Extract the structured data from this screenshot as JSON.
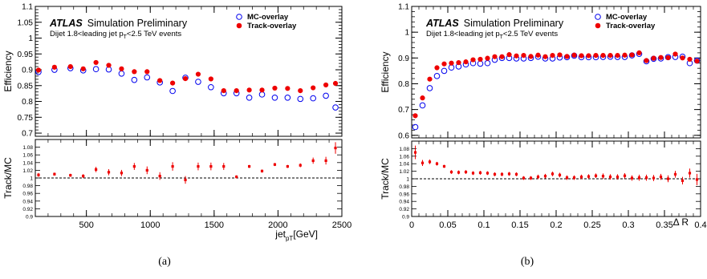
{
  "chart_data": [
    {
      "type": "scatter",
      "panel_label": "(a)",
      "atlas_label": "ATLAS",
      "atlas_sublabel": "Simulation Preliminary",
      "event_selection": {
        "prefix": "Dijet 1.8<leading jet p",
        "sub": "T",
        "suffix": "<2.5 TeV events"
      },
      "ylabel": "Efficiency",
      "ratio_ylabel": "Track/MC",
      "xlabel": {
        "main": "jet",
        "sub": "pT",
        "unit": "[GeV]"
      },
      "xlim": [
        100,
        2500
      ],
      "ylim": [
        0.69,
        1.1
      ],
      "ratio_ylim": [
        0.9,
        1.1
      ],
      "xticks": [
        500,
        1000,
        1500,
        2000,
        2500
      ],
      "yticks": [
        0.7,
        0.75,
        0.8,
        0.85,
        0.9,
        0.95,
        1,
        1.05,
        1.1
      ],
      "ratio_yticks": [
        0.9,
        0.92,
        0.94,
        0.96,
        0.98,
        1,
        1.02,
        1.04,
        1.06,
        1.08
      ],
      "x_minor_step": 100,
      "legend_position": "top-right",
      "series": [
        {
          "name": "MC-overlay",
          "marker": "open-circle",
          "color": "#0000ee",
          "x": [
            125,
            250,
            375,
            475,
            575,
            675,
            775,
            875,
            975,
            1075,
            1175,
            1275,
            1375,
            1475,
            1575,
            1675,
            1775,
            1875,
            1975,
            2075,
            2175,
            2275,
            2375,
            2450
          ],
          "y": [
            0.893,
            0.9,
            0.905,
            0.898,
            0.902,
            0.901,
            0.888,
            0.868,
            0.876,
            0.86,
            0.833,
            0.875,
            0.862,
            0.845,
            0.826,
            0.826,
            0.812,
            0.822,
            0.812,
            0.812,
            0.808,
            0.81,
            0.818,
            0.781
          ]
        },
        {
          "name": "Track-overlay",
          "marker": "filled-circle",
          "color": "#ee0000",
          "x": [
            125,
            250,
            375,
            475,
            575,
            675,
            775,
            875,
            975,
            1075,
            1175,
            1275,
            1375,
            1475,
            1575,
            1675,
            1775,
            1875,
            1975,
            2075,
            2175,
            2275,
            2375,
            2450
          ],
          "y": [
            0.899,
            0.908,
            0.91,
            0.903,
            0.923,
            0.914,
            0.903,
            0.894,
            0.894,
            0.866,
            0.858,
            0.872,
            0.886,
            0.871,
            0.834,
            0.834,
            0.836,
            0.836,
            0.842,
            0.841,
            0.834,
            0.843,
            0.852,
            0.857
          ]
        }
      ],
      "ratio": {
        "color": "#ee0000",
        "x": [
          125,
          250,
          375,
          475,
          575,
          675,
          775,
          875,
          975,
          1075,
          1175,
          1275,
          1375,
          1475,
          1575,
          1675,
          1775,
          1875,
          1975,
          2075,
          2175,
          2275,
          2375,
          2450
        ],
        "y": [
          1.008,
          1.01,
          1.007,
          1.005,
          1.022,
          1.015,
          1.013,
          1.03,
          1.02,
          1.005,
          1.03,
          0.995,
          1.03,
          1.03,
          1.03,
          1.003,
          1.03,
          1.018,
          1.035,
          1.03,
          1.033,
          1.045,
          1.045,
          1.078
        ],
        "err": [
          0.005,
          0.004,
          0.004,
          0.005,
          0.007,
          0.008,
          0.008,
          0.009,
          0.01,
          0.01,
          0.011,
          0.01,
          0.01,
          0.01,
          0.009,
          0.004,
          0.004,
          0.004,
          0.004,
          0.004,
          0.005,
          0.008,
          0.01,
          0.015
        ]
      }
    },
    {
      "type": "scatter",
      "panel_label": "(b)",
      "atlas_label": "ATLAS",
      "atlas_sublabel": "Simulation Preliminary",
      "event_selection": {
        "prefix": "Dijet 1.8<leading jet p",
        "sub": "T",
        "suffix": "<2.5 TeV events"
      },
      "ylabel": "Efficiency",
      "ratio_ylabel": "Track/MC",
      "xlabel": {
        "main": "Δ R",
        "sub": "",
        "unit": ""
      },
      "xlim": [
        0,
        0.4
      ],
      "ylim": [
        0.59,
        1.1
      ],
      "ratio_ylim": [
        0.9,
        1.1
      ],
      "xticks": [
        0,
        0.05,
        0.1,
        0.15,
        0.2,
        0.25,
        0.3,
        0.35,
        0.4
      ],
      "yticks": [
        0.6,
        0.7,
        0.8,
        0.9,
        1,
        1.1
      ],
      "ratio_yticks": [
        0.9,
        0.92,
        0.94,
        0.96,
        0.98,
        1,
        1.02,
        1.04,
        1.06,
        1.08
      ],
      "x_minor_step": 0.01,
      "legend_position": "top-right",
      "series": [
        {
          "name": "MC-overlay",
          "marker": "open-circle",
          "color": "#0000ee",
          "x": [
            0.005,
            0.015,
            0.025,
            0.035,
            0.045,
            0.055,
            0.065,
            0.075,
            0.085,
            0.095,
            0.105,
            0.115,
            0.125,
            0.135,
            0.145,
            0.155,
            0.165,
            0.175,
            0.185,
            0.195,
            0.205,
            0.215,
            0.225,
            0.235,
            0.245,
            0.255,
            0.265,
            0.275,
            0.285,
            0.295,
            0.305,
            0.315,
            0.325,
            0.335,
            0.345,
            0.355,
            0.365,
            0.375,
            0.385,
            0.395
          ],
          "y": [
            0.632,
            0.716,
            0.783,
            0.83,
            0.85,
            0.863,
            0.867,
            0.875,
            0.88,
            0.878,
            0.88,
            0.893,
            0.9,
            0.9,
            0.898,
            0.898,
            0.9,
            0.905,
            0.898,
            0.898,
            0.902,
            0.903,
            0.909,
            0.903,
            0.903,
            0.903,
            0.904,
            0.905,
            0.904,
            0.904,
            0.91,
            0.916,
            0.887,
            0.897,
            0.898,
            0.903,
            0.904,
            0.905,
            0.88,
            0.89
          ]
        },
        {
          "name": "Track-overlay",
          "marker": "filled-circle",
          "color": "#ee0000",
          "x": [
            0.005,
            0.015,
            0.025,
            0.035,
            0.045,
            0.055,
            0.065,
            0.075,
            0.085,
            0.095,
            0.105,
            0.115,
            0.125,
            0.135,
            0.145,
            0.155,
            0.165,
            0.175,
            0.185,
            0.195,
            0.205,
            0.215,
            0.225,
            0.235,
            0.245,
            0.255,
            0.265,
            0.275,
            0.285,
            0.295,
            0.305,
            0.315,
            0.325,
            0.335,
            0.345,
            0.355,
            0.365,
            0.375,
            0.385,
            0.395
          ],
          "y": [
            0.676,
            0.745,
            0.818,
            0.862,
            0.877,
            0.88,
            0.882,
            0.885,
            0.893,
            0.895,
            0.899,
            0.905,
            0.905,
            0.913,
            0.908,
            0.91,
            0.906,
            0.911,
            0.905,
            0.91,
            0.912,
            0.906,
            0.911,
            0.909,
            0.909,
            0.91,
            0.91,
            0.91,
            0.91,
            0.911,
            0.912,
            0.92,
            0.89,
            0.899,
            0.902,
            0.901,
            0.915,
            0.9,
            0.895,
            0.888
          ]
        }
      ],
      "ratio": {
        "color": "#ee0000",
        "x": [
          0.005,
          0.015,
          0.025,
          0.035,
          0.045,
          0.055,
          0.065,
          0.075,
          0.085,
          0.095,
          0.105,
          0.115,
          0.125,
          0.135,
          0.145,
          0.155,
          0.165,
          0.175,
          0.185,
          0.195,
          0.205,
          0.215,
          0.225,
          0.235,
          0.245,
          0.255,
          0.265,
          0.275,
          0.285,
          0.295,
          0.305,
          0.315,
          0.325,
          0.335,
          0.345,
          0.355,
          0.365,
          0.375,
          0.385,
          0.395
        ],
        "y": [
          1.07,
          1.042,
          1.045,
          1.04,
          1.033,
          1.018,
          1.017,
          1.018,
          1.015,
          1.016,
          1.015,
          1.012,
          1.012,
          1.013,
          1.012,
          1.002,
          1.002,
          1.005,
          1.007,
          1.013,
          1.01,
          1.003,
          1.003,
          1.005,
          1.006,
          1.008,
          1.007,
          1.005,
          1.005,
          1.008,
          1.002,
          1.003,
          1.003,
          1.002,
          1.005,
          1.0,
          1.012,
          0.995,
          1.015,
          0.998
        ],
        "err": [
          0.018,
          0.008,
          0.006,
          0.005,
          0.004,
          0.005,
          0.005,
          0.005,
          0.005,
          0.005,
          0.005,
          0.005,
          0.005,
          0.005,
          0.005,
          0.005,
          0.005,
          0.006,
          0.006,
          0.006,
          0.006,
          0.006,
          0.006,
          0.006,
          0.006,
          0.006,
          0.007,
          0.007,
          0.007,
          0.007,
          0.007,
          0.008,
          0.008,
          0.008,
          0.008,
          0.009,
          0.009,
          0.01,
          0.012,
          0.015
        ]
      }
    }
  ]
}
